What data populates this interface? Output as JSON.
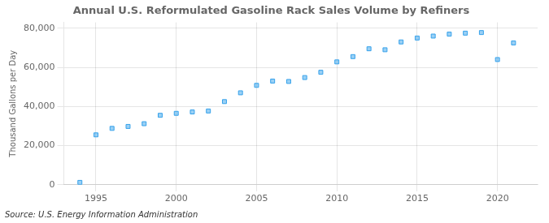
{
  "chart_data": {
    "type": "scatter",
    "title": "Annual U.S. Reformulated Gasoline Rack Sales Volume by Refiners",
    "y_label": "Thousand Gallons per Day",
    "annotation": "Source: U.S. Energy Information Administration",
    "x": [
      1994,
      1995,
      1996,
      1997,
      1998,
      1999,
      2000,
      2001,
      2002,
      2003,
      2004,
      2005,
      2006,
      2007,
      2008,
      2009,
      2010,
      2011,
      2012,
      2013,
      2014,
      2015,
      2016,
      2017,
      2018,
      2019,
      2020,
      2021
    ],
    "values": [
      1200,
      25500,
      28800,
      29800,
      31200,
      35500,
      36500,
      37200,
      37700,
      42500,
      47000,
      50800,
      53000,
      52800,
      54800,
      57500,
      62800,
      65500,
      69500,
      69000,
      73000,
      75000,
      76000,
      77000,
      77500,
      77800,
      64000,
      72500
    ],
    "marker": "square",
    "xlim": [
      1993,
      2022.5
    ],
    "ylim": [
      0,
      83000
    ],
    "xticks": [
      1995,
      2000,
      2005,
      2010,
      2015,
      2020
    ],
    "yticks": [
      0,
      {
        "value": 20000,
        "label": "20,000"
      },
      {
        "value": 40000,
        "label": "40,000"
      },
      {
        "value": 60000,
        "label": "60,000"
      },
      {
        "value": 80000,
        "label": "80,000"
      }
    ],
    "grid": true
  }
}
